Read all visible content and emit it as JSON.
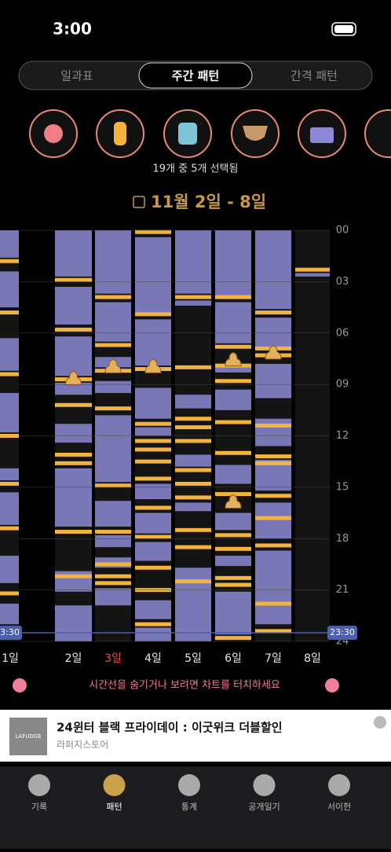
{
  "status": {
    "time": "3:00"
  },
  "tabs": [
    "일과표",
    "주간 패턴",
    "간격 패턴"
  ],
  "filter_summary": "19개 중 5개 선택됨",
  "date_range": "11월 2일 - 8일",
  "chart_data": {
    "type": "timeline",
    "ylim": [
      0,
      24
    ],
    "yticks": [
      {
        "value": 0,
        "label": "00"
      },
      {
        "value": 3,
        "label": "03"
      },
      {
        "value": 6,
        "label": "06"
      },
      {
        "value": 9,
        "label": "09"
      },
      {
        "value": 12,
        "label": "12"
      },
      {
        "value": 15,
        "label": "15"
      },
      {
        "value": 18,
        "label": "18"
      },
      {
        "value": 21,
        "label": "21"
      },
      24
    ],
    "sleep_color": "#7977b6",
    "feed_color": "#f2b43e",
    "days": [
      {
        "label": "1일",
        "color": "#e8e8e8",
        "sleeps": [
          [
            0,
            1.6
          ],
          [
            2.4,
            4.5
          ],
          [
            6.3,
            8.2
          ],
          [
            9.5,
            11.8
          ],
          [
            13.9,
            14.6
          ],
          [
            15.3,
            17.2
          ],
          [
            19.0,
            20.6
          ],
          [
            21.8,
            23.0
          ]
        ],
        "feeds": [
          1.8,
          4.8,
          8.4,
          12.0,
          14.8,
          17.4,
          21.2
        ],
        "poops": []
      },
      {
        "label": "2일",
        "color": "#e8e8e8",
        "sleeps": [
          [
            0,
            2.7
          ],
          [
            3.3,
            5.5
          ],
          [
            6.2,
            8.5
          ],
          [
            8.9,
            9.6
          ],
          [
            11.3,
            12.4
          ],
          [
            13.9,
            17.3
          ],
          [
            19.9,
            21.1
          ],
          [
            21.9,
            24
          ]
        ],
        "feeds": [
          2.9,
          5.8,
          8.7,
          10.2,
          13.1,
          13.6,
          17.6,
          20.2
        ],
        "poops": [
          8.7
        ]
      },
      {
        "label": "3일",
        "color": "#ef4d4d",
        "sleeps": [
          [
            0,
            3.7
          ],
          [
            4.2,
            6.5
          ],
          [
            7.4,
            8.0
          ],
          [
            8.8,
            9.5
          ],
          [
            10.8,
            14.7
          ],
          [
            15.8,
            17.3
          ],
          [
            17.8,
            18.5
          ],
          [
            19.1,
            19.7
          ],
          [
            20.9,
            21.9
          ]
        ],
        "feeds": [
          3.9,
          6.7,
          8.2,
          10.4,
          14.9,
          17.6,
          19.5,
          20.2,
          20.6
        ],
        "poops": [
          8.0
        ]
      },
      {
        "label": "4일",
        "color": "#e8e8e8",
        "sleeps": [
          [
            0.4,
            4.8
          ],
          [
            5.2,
            7.9
          ],
          [
            9.2,
            11.0
          ],
          [
            11.5,
            12.0
          ],
          [
            14.8,
            15.7
          ],
          [
            16.5,
            17.7
          ],
          [
            18.2,
            19.3
          ],
          [
            21.6,
            22.7
          ],
          [
            23.2,
            24
          ]
        ],
        "feeds": [
          0.1,
          4.9,
          8.1,
          11.3,
          12.3,
          12.8,
          13.5,
          14.5,
          16.2,
          17.9,
          19.7,
          21.0,
          23.0
        ],
        "poops": [
          8.0
        ]
      },
      {
        "label": "5일",
        "color": "#e8e8e8",
        "sleeps": [
          [
            0,
            3.7
          ],
          [
            4.1,
            4.4
          ],
          [
            9.6,
            10.4
          ],
          [
            13.1,
            13.8
          ],
          [
            15.9,
            16.4
          ],
          [
            19.7,
            24
          ]
        ],
        "feeds": [
          3.9,
          8.0,
          11.0,
          11.5,
          12.3,
          14.0,
          14.8,
          15.6,
          17.5,
          18.5,
          20.5
        ],
        "poops": []
      },
      {
        "label": "6일",
        "color": "#e8e8e8",
        "sleeps": [
          [
            0,
            3.8
          ],
          [
            4.2,
            6.6
          ],
          [
            7.8,
            8.3
          ],
          [
            9.3,
            10.5
          ],
          [
            13.7,
            14.8
          ],
          [
            16.5,
            17.5
          ],
          [
            19.0,
            19.6
          ],
          [
            21.1,
            23.6
          ]
        ],
        "feeds": [
          3.9,
          6.8,
          7.9,
          8.8,
          11.2,
          13.0,
          15.4,
          17.8,
          18.6,
          20.3,
          20.7,
          23.8
        ],
        "poops": [
          7.6,
          15.9
        ]
      },
      {
        "label": "7일",
        "color": "#e8e8e8",
        "sleeps": [
          [
            0,
            4.6
          ],
          [
            5.1,
            6.8
          ],
          [
            7.8,
            9.8
          ],
          [
            11.0,
            12.6
          ],
          [
            13.4,
            15.2
          ],
          [
            15.9,
            18.0
          ],
          [
            18.7,
            21.7
          ],
          [
            21.9,
            23.0
          ]
        ],
        "feeds": [
          4.8,
          6.9,
          7.3,
          11.4,
          13.2,
          13.6,
          15.5,
          16.8,
          18.4,
          21.8,
          23.4
        ],
        "poops": [
          7.2
        ]
      },
      {
        "label": "8일",
        "color": "#e8e8e8",
        "sleeps": [
          [
            2.5,
            2.7
          ]
        ],
        "feeds": [
          2.3
        ],
        "poops": []
      }
    ],
    "timeline": {
      "value": 23.5,
      "label": "23:30",
      "color": "#4a5fae"
    }
  },
  "hint": "시간선을 숨기거나 보려면 차트를 터치하세요",
  "ad": {
    "title": "24윈터 블랙 프라이데이 : 이굿위크 더블할인",
    "advertiser": "라퍼지스토어",
    "logo": "LAFUDGE"
  },
  "nav": [
    "기록",
    "패턴",
    "통계",
    "공개일기",
    "서이헌"
  ]
}
